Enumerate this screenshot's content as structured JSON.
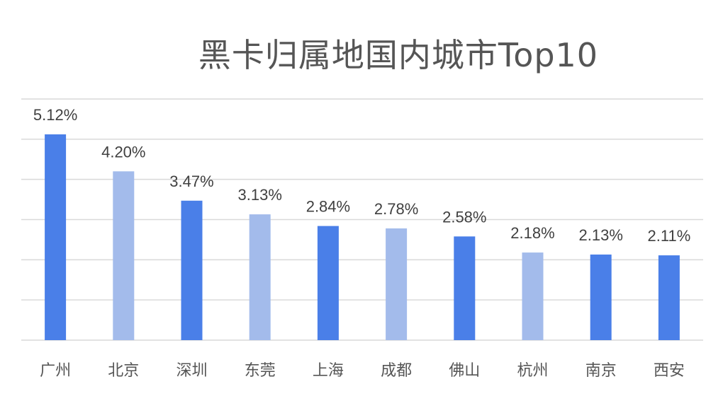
{
  "chart_data": {
    "type": "bar",
    "title": "黑卡归属地国内城市Top10",
    "categories": [
      "广州",
      "北京",
      "深圳",
      "东莞",
      "上海",
      "成都",
      "佛山",
      "杭州",
      "南京",
      "西安"
    ],
    "values": [
      5.12,
      4.2,
      3.47,
      3.13,
      2.84,
      2.78,
      2.58,
      2.18,
      2.13,
      2.11
    ],
    "data_labels": [
      "5.12%",
      "4.20%",
      "3.47%",
      "3.13%",
      "2.84%",
      "2.78%",
      "2.58%",
      "2.18%",
      "2.13%",
      "2.11%"
    ],
    "ylim": [
      0,
      6
    ],
    "grid": true,
    "legend": "none",
    "colors": {
      "dark": "#4a7fe8",
      "light": "#a3bbeb",
      "grid": "#d9d9d9",
      "text": "#404040"
    },
    "bar_shades": [
      "dark",
      "light",
      "dark",
      "light",
      "dark",
      "light",
      "dark",
      "light",
      "dark",
      "dark"
    ]
  }
}
